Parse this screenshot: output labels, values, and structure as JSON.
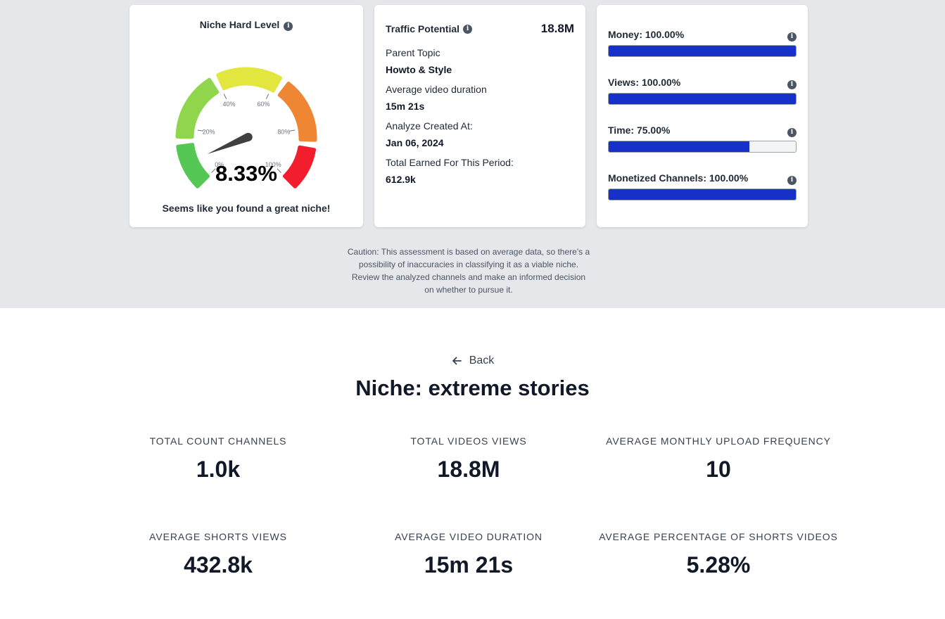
{
  "gauge_card": {
    "title": "Niche Hard Level",
    "info_icon": "info-icon",
    "value": 8.33,
    "value_label": "8.33%",
    "ticks": [
      "0%",
      "20%",
      "40%",
      "60%",
      "80%",
      "100%"
    ],
    "segment_colors": [
      "#55c755",
      "#8fd64c",
      "#e2e63e",
      "#ee8634",
      "#f21d2d"
    ],
    "tagline": "Seems like you found a great niche!"
  },
  "traffic_card": {
    "label": "Traffic Potential",
    "value": "18.8M",
    "items": [
      {
        "key": "Parent Topic",
        "value": "Howto & Style"
      },
      {
        "key": "Average video duration",
        "value": "15m 21s"
      },
      {
        "key": "Analyze Created At:",
        "value": "Jan 06, 2024"
      },
      {
        "key": "Total Earned For This Period:",
        "value": "612.9k"
      }
    ]
  },
  "bars_card": {
    "bar_color": "#1730c9",
    "bars": [
      {
        "label": "Money: 100.00%",
        "percent": 100
      },
      {
        "label": "Views: 100.00%",
        "percent": 100
      },
      {
        "label": "Time: 75.00%",
        "percent": 75
      },
      {
        "label": "Monetized Channels: 100.00%",
        "percent": 100
      }
    ]
  },
  "caution": {
    "lines": [
      "Caution: This assessment is based on average data, so there's a",
      "possibility of inaccuracies in classifying it as a viable niche.",
      "Review the analyzed channels and make an informed decision",
      "on whether to pursue it."
    ]
  },
  "niche": {
    "back_label": "Back",
    "back_icon": "arrow-left-icon",
    "title": "Niche: extreme stories",
    "stats": [
      {
        "label": "TOTAL COUNT CHANNELS",
        "value": "1.0k"
      },
      {
        "label": "TOTAL VIDEOS VIEWS",
        "value": "18.8M"
      },
      {
        "label": "AVERAGE MONTHLY UPLOAD FREQUENCY",
        "value": "10"
      },
      {
        "label": "AVERAGE SHORTS VIEWS",
        "value": "432.8k"
      },
      {
        "label": "AVERAGE VIDEO DURATION",
        "value": "15m 21s"
      },
      {
        "label": "AVERAGE PERCENTAGE OF SHORTS VIDEOS",
        "value": "5.28%"
      }
    ]
  }
}
